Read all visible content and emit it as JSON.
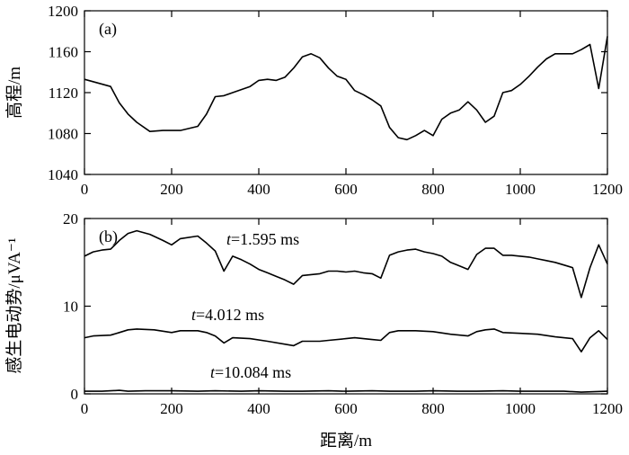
{
  "chart_data": [
    {
      "type": "line",
      "panel_label": "(a)",
      "xlabel": "",
      "ylabel": "高程/m",
      "xlim": [
        0,
        1200
      ],
      "ylim": [
        1040,
        1200
      ],
      "x_ticks": [
        0,
        200,
        400,
        600,
        800,
        1000,
        1200
      ],
      "y_ticks": [
        1040,
        1080,
        1120,
        1160,
        1200
      ],
      "grid": false,
      "series": [
        {
          "x": [
            0,
            60,
            80,
            100,
            120,
            150,
            180,
            220,
            260,
            280,
            300,
            320,
            340,
            360,
            380,
            400,
            420,
            440,
            460,
            480,
            500,
            520,
            540,
            560,
            580,
            600,
            620,
            640,
            660,
            680,
            700,
            720,
            740,
            760,
            780,
            800,
            820,
            840,
            860,
            880,
            900,
            920,
            940,
            960,
            980,
            1000,
            1020,
            1040,
            1060,
            1080,
            1100,
            1120,
            1140,
            1160,
            1180,
            1200
          ],
          "y": [
            1133,
            1126,
            1110,
            1099,
            1091,
            1082,
            1083,
            1083,
            1087,
            1099,
            1116,
            1117,
            1120,
            1123,
            1126,
            1132,
            1133,
            1132,
            1135,
            1144,
            1155,
            1158,
            1154,
            1144,
            1136,
            1133,
            1122,
            1118,
            1113,
            1107,
            1086,
            1076,
            1074,
            1078,
            1083,
            1078,
            1094,
            1100,
            1103,
            1111,
            1103,
            1091,
            1097,
            1120,
            1122,
            1128,
            1136,
            1145,
            1153,
            1158,
            1158,
            1158,
            1162,
            1167,
            1124,
            1175
          ]
        }
      ]
    },
    {
      "type": "line",
      "panel_label": "(b)",
      "xlabel": "距离/m",
      "ylabel": "感生电动势/μVA⁻¹",
      "xlim": [
        0,
        1200
      ],
      "ylim": [
        0,
        20
      ],
      "x_ticks": [
        0,
        200,
        400,
        600,
        800,
        1000,
        1200
      ],
      "y_ticks": [
        0,
        10,
        20
      ],
      "grid": false,
      "series": [
        {
          "label": "t=1.595 ms",
          "x": [
            0,
            20,
            40,
            60,
            80,
            100,
            120,
            150,
            180,
            200,
            220,
            260,
            280,
            300,
            320,
            340,
            360,
            380,
            400,
            420,
            440,
            460,
            480,
            500,
            520,
            540,
            560,
            580,
            600,
            620,
            640,
            660,
            680,
            700,
            720,
            740,
            760,
            780,
            800,
            820,
            840,
            860,
            880,
            900,
            920,
            940,
            960,
            980,
            1000,
            1020,
            1040,
            1060,
            1080,
            1100,
            1120,
            1140,
            1160,
            1180,
            1200
          ],
          "y": [
            15.7,
            16.2,
            16.4,
            16.5,
            17.5,
            18.3,
            18.6,
            18.2,
            17.5,
            17.0,
            17.7,
            18.0,
            17.2,
            16.3,
            14.0,
            15.7,
            15.3,
            14.8,
            14.2,
            13.8,
            13.4,
            13.0,
            12.5,
            13.5,
            13.6,
            13.7,
            14.0,
            14.0,
            13.9,
            14.0,
            13.8,
            13.7,
            13.2,
            15.8,
            16.2,
            16.4,
            16.5,
            16.2,
            16.0,
            15.7,
            15.0,
            14.6,
            14.2,
            15.9,
            16.6,
            16.6,
            15.8,
            15.8,
            15.7,
            15.6,
            15.4,
            15.2,
            15.0,
            14.7,
            14.4,
            11.0,
            14.4,
            17.0,
            14.8
          ]
        },
        {
          "label": "t=4.012 ms",
          "x": [
            0,
            20,
            60,
            80,
            100,
            120,
            160,
            200,
            220,
            260,
            280,
            300,
            320,
            340,
            380,
            420,
            480,
            500,
            540,
            560,
            600,
            620,
            660,
            680,
            700,
            720,
            760,
            800,
            840,
            880,
            900,
            920,
            940,
            960,
            1000,
            1040,
            1080,
            1120,
            1140,
            1160,
            1180,
            1200
          ],
          "y": [
            6.4,
            6.6,
            6.7,
            7.0,
            7.3,
            7.4,
            7.3,
            7.0,
            7.2,
            7.2,
            7.0,
            6.6,
            5.8,
            6.4,
            6.3,
            6.0,
            5.5,
            6.0,
            6.0,
            6.1,
            6.3,
            6.4,
            6.2,
            6.1,
            7.0,
            7.2,
            7.2,
            7.1,
            6.8,
            6.6,
            7.1,
            7.3,
            7.4,
            7.0,
            6.9,
            6.8,
            6.5,
            6.3,
            4.8,
            6.4,
            7.2,
            6.2
          ]
        },
        {
          "label": "t=10.084 ms",
          "x": [
            0,
            40,
            80,
            100,
            140,
            200,
            260,
            300,
            360,
            400,
            460,
            500,
            560,
            600,
            660,
            700,
            760,
            800,
            860,
            900,
            960,
            1000,
            1060,
            1100,
            1140,
            1200
          ],
          "y": [
            0.3,
            0.3,
            0.4,
            0.3,
            0.35,
            0.35,
            0.3,
            0.35,
            0.3,
            0.35,
            0.3,
            0.3,
            0.35,
            0.3,
            0.35,
            0.3,
            0.3,
            0.35,
            0.3,
            0.3,
            0.35,
            0.3,
            0.3,
            0.3,
            0.2,
            0.3
          ]
        }
      ]
    }
  ]
}
